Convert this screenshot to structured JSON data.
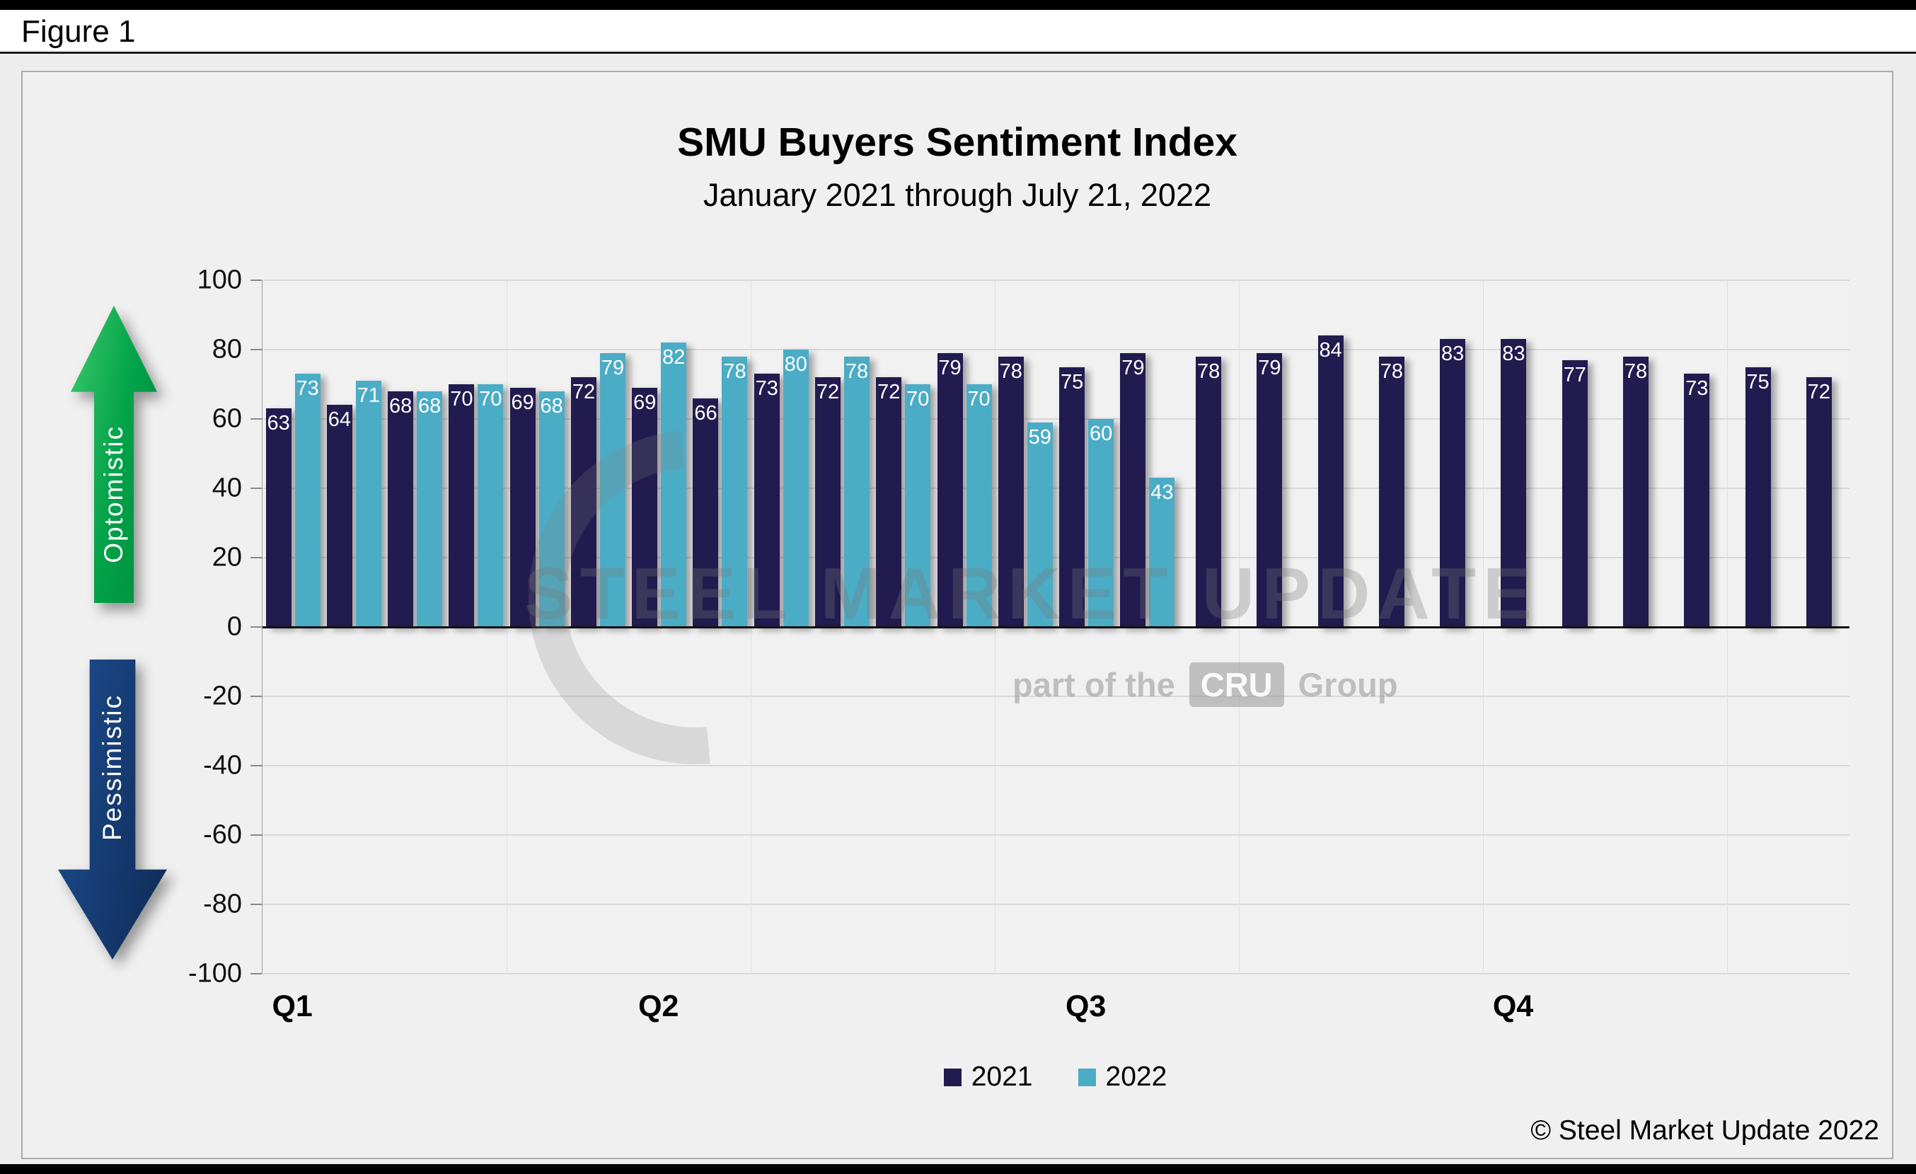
{
  "figure_label": "Figure 1",
  "chart_data": {
    "type": "bar",
    "title": "SMU Buyers Sentiment Index",
    "subtitle": "January 2021 through July 21, 2022",
    "ylim": [
      -100,
      100
    ],
    "ytick_step": 20,
    "grid": true,
    "legend_position": "bottom",
    "num_slots": 26,
    "quarter_labels": [
      "Q1",
      "Q2",
      "Q3",
      "Q4"
    ],
    "quarter_slots": [
      0,
      6,
      13,
      20
    ],
    "series": [
      {
        "name": "2021",
        "color": "#221b4f",
        "values": [
          63,
          64,
          68,
          70,
          69,
          72,
          69,
          66,
          73,
          72,
          72,
          79,
          78,
          75,
          79,
          78,
          79,
          84,
          78,
          83,
          83,
          77,
          78,
          73,
          75,
          72
        ]
      },
      {
        "name": "2022",
        "color": "#4bacc6",
        "values": [
          73,
          71,
          68,
          70,
          68,
          79,
          82,
          78,
          80,
          78,
          70,
          70,
          59,
          60,
          43
        ]
      }
    ]
  },
  "annotations": {
    "optimistic_label": "Optomistic",
    "pessimistic_label": "Pessimistic"
  },
  "watermark": {
    "line1": "STEEL MARKET UPDATE",
    "line2_prefix": "part of the",
    "line2_box": "CRU",
    "line2_suffix": "Group"
  },
  "footer": {
    "copyright": "© Steel Market Update 2022"
  },
  "colors": {
    "series_2021": "#221b4f",
    "series_2022": "#4bacc6",
    "optimistic_green": "#00a148",
    "pessimistic_navy": "#153a70",
    "page_background": "#ededed",
    "gridline": "#d9d9d9"
  }
}
